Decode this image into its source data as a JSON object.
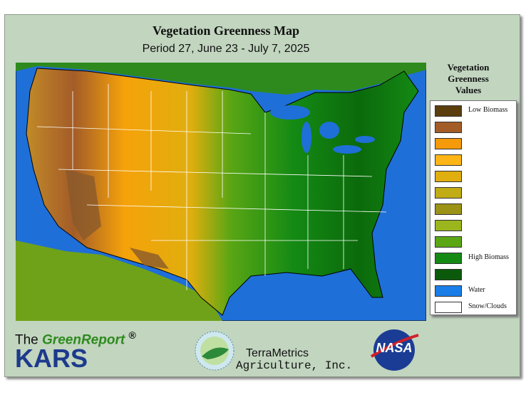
{
  "header": {
    "title": "Vegetation Greenness Map",
    "subtitle": "Period 27, June 23 - July 7, 2025"
  },
  "legend": {
    "title": "Vegetation Greenness Values",
    "items": [
      {
        "color": "#5c3d0e",
        "label": "Low Biomass"
      },
      {
        "color": "#a35c28"
      },
      {
        "color": "#f59a0a"
      },
      {
        "color": "#fdb515"
      },
      {
        "color": "#e0ae0e"
      },
      {
        "color": "#c2ac16"
      },
      {
        "color": "#9b9216"
      },
      {
        "color": "#9bb51e"
      },
      {
        "color": "#5aa614"
      },
      {
        "color": "#148a14",
        "label": "High Biomass"
      },
      {
        "color": "#0b5a0b"
      },
      {
        "color": "#1a7ee8",
        "label": "Water"
      },
      {
        "color": "#ffffff",
        "label": "Snow/Clouds"
      }
    ]
  },
  "footer": {
    "greenreport": {
      "prefix": "The",
      "name": "GreenReport",
      "mark": "®",
      "brand": "KARS"
    },
    "terrametrics": {
      "name": "TerraMetrics",
      "tagline": "Agriculture, Inc."
    },
    "nasa": "NASA"
  }
}
